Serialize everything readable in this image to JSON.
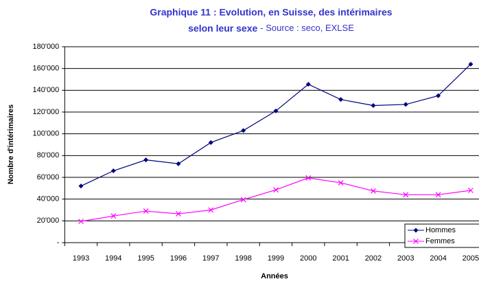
{
  "chart_data": {
    "type": "line",
    "title_lines": [
      "Graphique 11 : Evolution, en Suisse, des intérimaires",
      "selon leur sexe"
    ],
    "subtitle": "- Source : seco, EXLSE",
    "x_label": "Années",
    "y_label": "Nombre d'intérimaires",
    "categories": [
      "1993",
      "1994",
      "1995",
      "1996",
      "1997",
      "1998",
      "1999",
      "2000",
      "2001",
      "2002",
      "2003",
      "2004",
      "2005"
    ],
    "series": [
      {
        "name": "Hommes",
        "color": "#000080",
        "marker": "diamond",
        "values": [
          52000,
          66000,
          76000,
          72500,
          92000,
          103000,
          121000,
          145500,
          131500,
          126000,
          127000,
          135000,
          164000
        ]
      },
      {
        "name": "Femmes",
        "color": "#ff00ff",
        "marker": "x",
        "values": [
          19500,
          24500,
          29000,
          26500,
          30000,
          39500,
          48500,
          59500,
          55000,
          47500,
          44000,
          44000,
          48000
        ]
      }
    ],
    "ylim": [
      0,
      180000
    ],
    "yticks": [
      {
        "value": 0,
        "label": "-"
      },
      {
        "value": 20000,
        "label": "20'000"
      },
      {
        "value": 40000,
        "label": "40'000"
      },
      {
        "value": 60000,
        "label": "60'000"
      },
      {
        "value": 80000,
        "label": "80'000"
      },
      {
        "value": 100000,
        "label": "100'000"
      },
      {
        "value": 120000,
        "label": "120'000"
      },
      {
        "value": 140000,
        "label": "140'000"
      },
      {
        "value": 160000,
        "label": "160'000"
      },
      {
        "value": 180000,
        "label": "180'000"
      }
    ],
    "grid": true,
    "legend": "bottom-right"
  }
}
